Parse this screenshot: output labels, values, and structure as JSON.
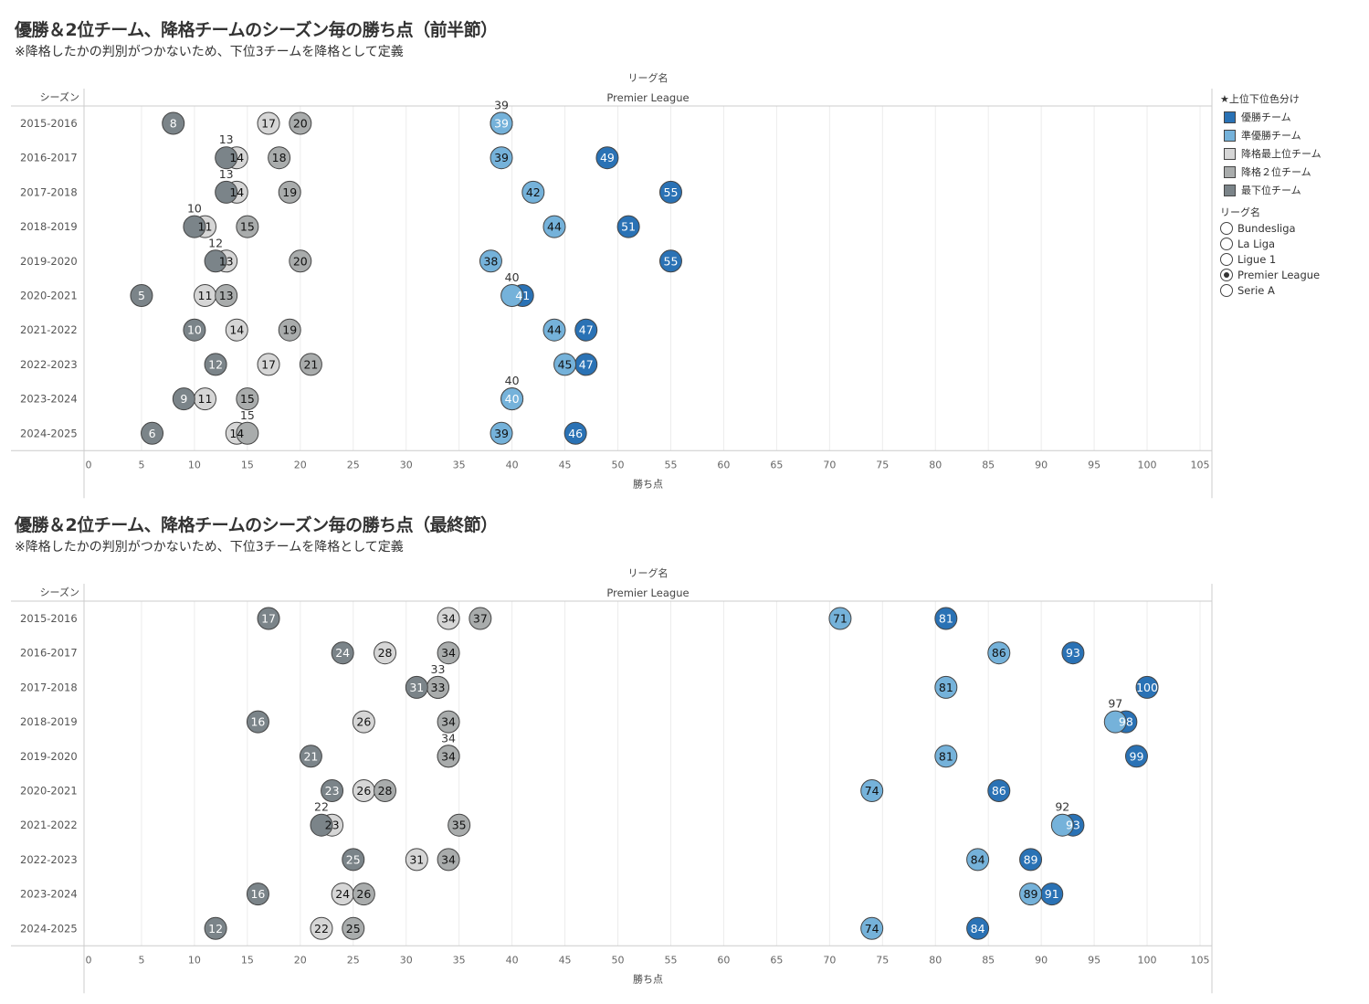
{
  "charts_text": [
    {
      "title": "優勝＆2位チーム、降格チームのシーズン毎の勝ち点（前半節）",
      "subtitle": "※降格したかの判別がつかないため、下位3チームを降格として定義"
    },
    {
      "title": "優勝＆2位チーム、降格チームのシーズン毎の勝ち点（最終節）",
      "subtitle": "※降格したかの判別がつかないため、下位3チームを降格として定義"
    }
  ],
  "legend": {
    "color_title": "★上位下位色分け",
    "items": [
      {
        "label": "優勝チーム",
        "color": "#2a72b5"
      },
      {
        "label": "準優勝チーム",
        "color": "#75b2da"
      },
      {
        "label": "降格最上位チーム",
        "color": "#d6d6d6"
      },
      {
        "label": "降格２位チーム",
        "color": "#a9acac"
      },
      {
        "label": "最下位チーム",
        "color": "#7b8489"
      }
    ],
    "league_title": "リーグ名",
    "leagues": [
      "Bundesliga",
      "La Liga",
      "Ligue 1",
      "Premier League",
      "Serie A"
    ],
    "selected_league": "Premier League"
  },
  "chart_data": [
    {
      "type": "scatter",
      "title": "優勝＆2位チーム、降格チームのシーズン毎の勝ち点（前半節）",
      "column_header_title": "リーグ名",
      "column_header": "Premier League",
      "row_header": "シーズン",
      "xlabel": "勝ち点",
      "xlim": [
        0,
        105
      ],
      "xticks": [
        0,
        5,
        10,
        15,
        20,
        25,
        30,
        35,
        40,
        45,
        50,
        55,
        60,
        65,
        70,
        75,
        80,
        85,
        90,
        95,
        100,
        105
      ],
      "categories": [
        "2015-2016",
        "2016-2017",
        "2017-2018",
        "2018-2019",
        "2019-2020",
        "2020-2021",
        "2021-2022",
        "2022-2023",
        "2023-2024",
        "2024-2025"
      ],
      "series": [
        {
          "name": "優勝チーム",
          "values": [
            39,
            49,
            55,
            51,
            55,
            41,
            47,
            47,
            40,
            46
          ]
        },
        {
          "name": "準優勝チーム",
          "values": [
            39,
            39,
            42,
            44,
            38,
            40,
            44,
            45,
            40,
            39
          ]
        },
        {
          "name": "降格２位チーム",
          "values": [
            17,
            14,
            14,
            11,
            13,
            11,
            14,
            17,
            11,
            14
          ]
        },
        {
          "name": "降格最上位チーム",
          "values": [
            20,
            18,
            19,
            15,
            20,
            13,
            19,
            21,
            15,
            15
          ]
        },
        {
          "name": "最下位チーム",
          "values": [
            8,
            13,
            13,
            10,
            12,
            5,
            10,
            12,
            9,
            6
          ]
        }
      ]
    },
    {
      "type": "scatter",
      "title": "優勝＆2位チーム、降格チームのシーズン毎の勝ち点（最終節）",
      "column_header_title": "リーグ名",
      "column_header": "Premier League",
      "row_header": "シーズン",
      "xlabel": "勝ち点",
      "xlim": [
        0,
        105
      ],
      "xticks": [
        0,
        5,
        10,
        15,
        20,
        25,
        30,
        35,
        40,
        45,
        50,
        55,
        60,
        65,
        70,
        75,
        80,
        85,
        90,
        95,
        100,
        105
      ],
      "categories": [
        "2015-2016",
        "2016-2017",
        "2017-2018",
        "2018-2019",
        "2019-2020",
        "2020-2021",
        "2021-2022",
        "2022-2023",
        "2023-2024",
        "2024-2025"
      ],
      "series": [
        {
          "name": "優勝チーム",
          "values": [
            81,
            93,
            100,
            98,
            99,
            86,
            93,
            89,
            91,
            84
          ]
        },
        {
          "name": "準優勝チーム",
          "values": [
            71,
            86,
            81,
            97,
            81,
            74,
            92,
            84,
            89,
            74
          ]
        },
        {
          "name": "降格２位チーム",
          "values": [
            34,
            28,
            33,
            26,
            34,
            26,
            23,
            31,
            24,
            22
          ]
        },
        {
          "name": "降格最上位チーム",
          "values": [
            37,
            34,
            33,
            34,
            34,
            28,
            35,
            34,
            26,
            25
          ]
        },
        {
          "name": "最下位チーム",
          "values": [
            17,
            24,
            31,
            16,
            21,
            23,
            22,
            25,
            16,
            12
          ]
        }
      ]
    }
  ]
}
